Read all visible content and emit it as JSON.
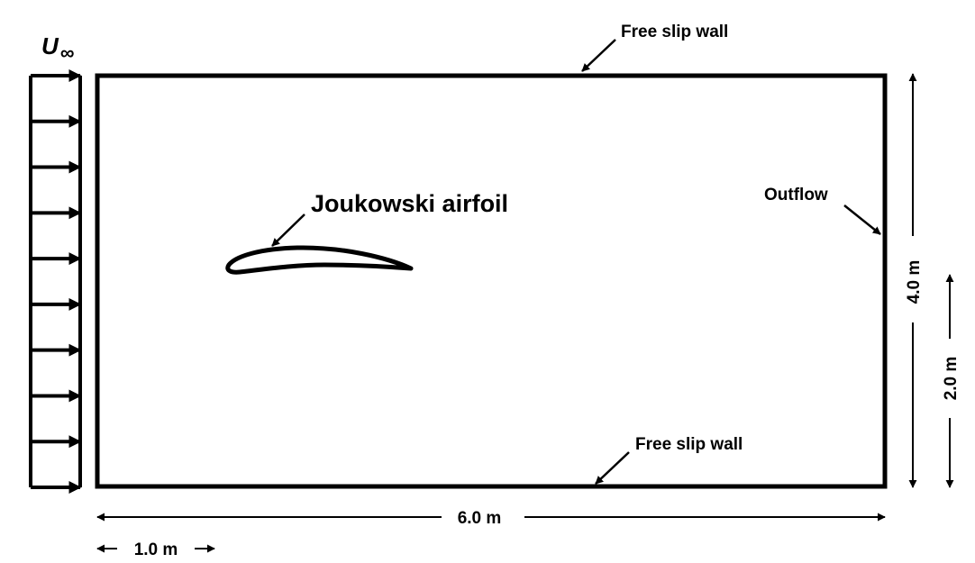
{
  "labels": {
    "freestream_symbol": "U",
    "freestream_subscript": "∞",
    "top_wall": "Free slip wall",
    "bottom_wall": "Free slip wall",
    "airfoil": "Joukowski airfoil",
    "outflow": "Outflow",
    "domain_width": "6.0 m",
    "inlet_offset": "1.0 m",
    "domain_height": "4.0 m",
    "half_height": "2.0 m"
  },
  "inflow": {
    "arrow_count": 10
  },
  "colors": {
    "stroke": "#000000",
    "background": "#ffffff"
  }
}
